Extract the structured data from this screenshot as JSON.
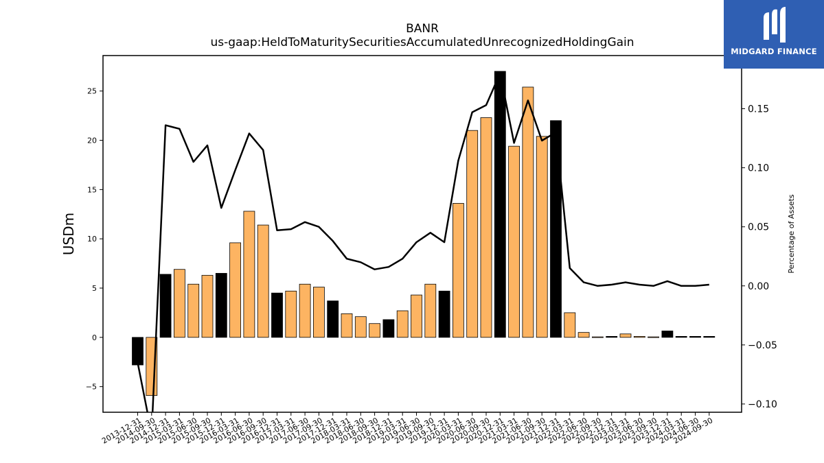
{
  "chart_data": {
    "type": "bar",
    "title": "BANR",
    "subtitle": "us-gaap:HeldToMaturitySecuritiesAccumulatedUnrecognizedHoldingGain",
    "ylabel": "USDm",
    "y2label": "Percentage of Assets",
    "ylim": [
      -7.6,
      28.6
    ],
    "y2lim": [
      -0.107,
      0.195
    ],
    "yticks": [
      -5,
      0,
      5,
      10,
      15,
      20,
      25
    ],
    "y2ticks": [
      -0.1,
      -0.05,
      0.0,
      0.05,
      0.1,
      0.15
    ],
    "categories": [
      "2013-12-31",
      "2014-09-30",
      "2014-12-31",
      "2015-03-31",
      "2015-06-30",
      "2015-09-30",
      "2015-12-31",
      "2016-03-31",
      "2016-06-30",
      "2016-09-30",
      "2016-12-31",
      "2017-03-31",
      "2017-06-30",
      "2017-09-30",
      "2017-12-31",
      "2018-03-31",
      "2018-06-30",
      "2018-09-30",
      "2018-12-31",
      "2019-03-31",
      "2019-06-30",
      "2019-09-30",
      "2019-12-31",
      "2020-03-31",
      "2020-06-30",
      "2020-09-30",
      "2020-12-31",
      "2021-03-31",
      "2021-06-30",
      "2021-09-30",
      "2021-12-31",
      "2022-03-31",
      "2022-06-30",
      "2022-09-30",
      "2022-12-31",
      "2023-03-31",
      "2023-06-30",
      "2023-09-30",
      "2023-12-31",
      "2024-03-31",
      "2024-06-30",
      "2024-09-30"
    ],
    "series": [
      {
        "type": "bar",
        "axis": "left",
        "values": [
          -2.8,
          -5.9,
          6.4,
          6.9,
          5.4,
          6.3,
          6.5,
          9.6,
          12.8,
          11.4,
          4.5,
          4.7,
          5.4,
          5.1,
          3.7,
          2.4,
          2.1,
          1.4,
          1.8,
          2.7,
          4.3,
          5.4,
          4.7,
          13.6,
          21.0,
          22.3,
          27.0,
          19.4,
          25.4,
          20.4,
          22.0,
          2.5,
          0.5,
          0.05,
          0.1,
          0.35,
          0.1,
          0.05,
          0.65,
          0.1,
          0.1,
          0.1
        ],
        "highlight": [
          true,
          false,
          true,
          false,
          false,
          false,
          true,
          false,
          false,
          false,
          true,
          false,
          false,
          false,
          true,
          false,
          false,
          false,
          true,
          false,
          false,
          false,
          true,
          false,
          false,
          false,
          true,
          false,
          false,
          false,
          true,
          false,
          false,
          false,
          true,
          false,
          false,
          false,
          true,
          true,
          true,
          true
        ]
      },
      {
        "type": "line",
        "axis": "right",
        "values": [
          -0.065,
          -0.125,
          0.136,
          0.133,
          0.105,
          0.119,
          0.066,
          0.098,
          0.129,
          0.115,
          0.047,
          0.048,
          0.054,
          0.05,
          0.038,
          0.023,
          0.02,
          0.014,
          0.016,
          0.023,
          0.037,
          0.045,
          0.037,
          0.106,
          0.147,
          0.153,
          0.18,
          0.121,
          0.157,
          0.123,
          0.13,
          0.015,
          0.003,
          0.0,
          0.001,
          0.003,
          0.001,
          0.0,
          0.004,
          0.0,
          0.0,
          0.001
        ]
      }
    ],
    "colors": {
      "bar": "#fdb462",
      "bar_highlight": "#000000",
      "line": "#000000",
      "bar_edge": "#000000"
    }
  },
  "brand": {
    "name": "MIDGARD FINANCE",
    "color": "#2f5fb3"
  }
}
